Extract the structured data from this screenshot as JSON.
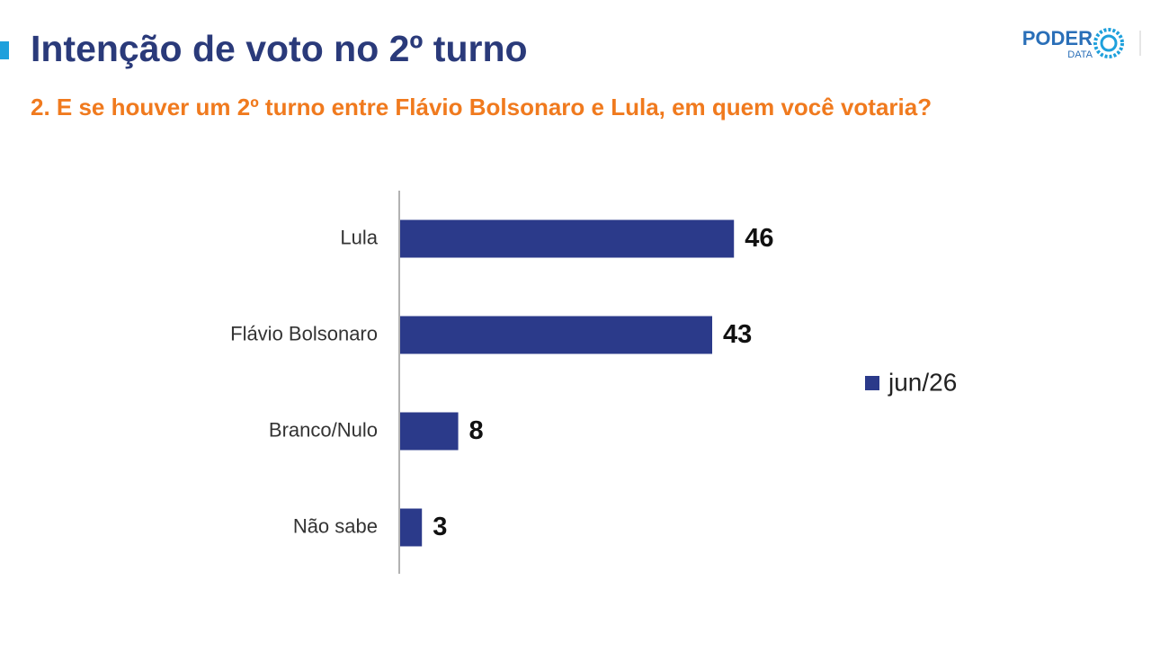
{
  "chart_data": {
    "type": "hbar",
    "title": "Intenção de voto no 2º turno",
    "subtitle": "2. E se houver um 2º turno entre Flávio Bolsonaro e Lula, em quem você votaria?",
    "categories": [
      "Lula",
      "Flávio Bolsonaro",
      "Branco/Nulo",
      "Não sabe"
    ],
    "series": [
      {
        "name": "jun/26",
        "color": "#2b3a8a",
        "values": [
          46,
          43,
          8,
          3
        ]
      }
    ],
    "legend": "right"
  },
  "logo": {
    "name": "PODER",
    "sub": "DATA"
  }
}
